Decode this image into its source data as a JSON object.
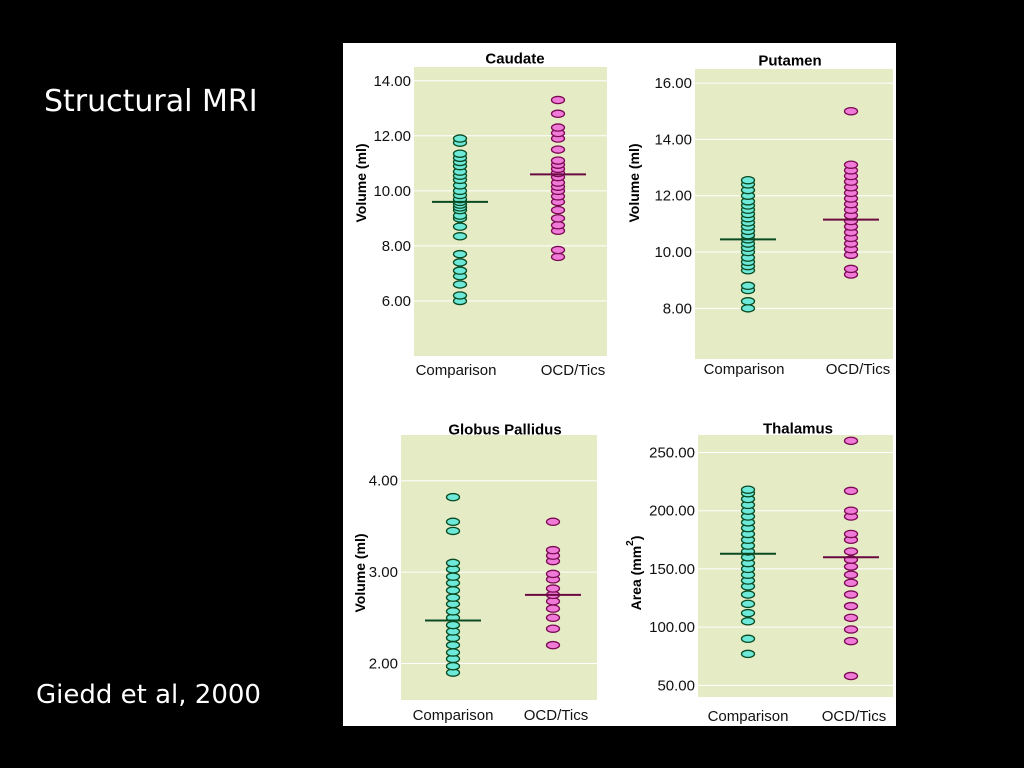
{
  "slide": {
    "title": "Structural MRI",
    "citation": "Giedd et al, 2000"
  },
  "colors": {
    "background": "#000000",
    "panel_bg": "#e5ebc5",
    "comparison_fill": "#6ee8d8",
    "comparison_stroke": "#0a4a22",
    "comparison_mean": "#0a4a22",
    "ocd_fill": "#f07ad8",
    "ocd_stroke": "#7a0a52",
    "ocd_mean": "#6a0a40"
  },
  "chart_data": [
    {
      "type": "scatter",
      "title": "Caudate",
      "ylabel": "Volume (ml)",
      "ylabel_sup": "",
      "ylabel_tail": "",
      "yticks": [
        "6.00",
        "8.00",
        "10.00",
        "12.00",
        "14.00"
      ],
      "ylim": [
        4.0,
        14.5
      ],
      "categories": [
        "Comparison",
        "OCD/Tics"
      ],
      "series": [
        {
          "name": "Comparison",
          "mean": 9.6,
          "values": [
            6.0,
            6.2,
            6.6,
            6.9,
            7.1,
            7.4,
            7.7,
            8.35,
            8.7,
            9.0,
            9.1,
            9.3,
            9.4,
            9.5,
            9.6,
            9.7,
            9.85,
            10.0,
            10.2,
            10.4,
            10.55,
            10.7,
            10.9,
            11.05,
            11.2,
            11.35,
            11.75,
            11.9
          ]
        },
        {
          "name": "OCD/Tics",
          "mean": 10.6,
          "values": [
            7.6,
            7.85,
            8.55,
            8.75,
            9.0,
            9.3,
            9.6,
            9.8,
            10.0,
            10.15,
            10.3,
            10.5,
            10.65,
            10.8,
            10.95,
            11.1,
            11.5,
            11.9,
            12.1,
            12.3,
            12.8,
            13.3
          ]
        }
      ]
    },
    {
      "type": "scatter",
      "title": "Putamen",
      "ylabel": "Volume (ml)",
      "ylabel_sup": "",
      "ylabel_tail": "",
      "yticks": [
        "8.00",
        "10.00",
        "12.00",
        "14.00",
        "16.00"
      ],
      "ylim": [
        6.2,
        16.5
      ],
      "categories": [
        "Comparison",
        "OCD/Tics"
      ],
      "series": [
        {
          "name": "Comparison",
          "mean": 10.45,
          "values": [
            8.0,
            8.25,
            8.65,
            8.8,
            9.35,
            9.5,
            9.65,
            9.8,
            10.0,
            10.15,
            10.3,
            10.45,
            10.6,
            10.75,
            10.9,
            11.05,
            11.2,
            11.35,
            11.5,
            11.65,
            11.8,
            12.0,
            12.2,
            12.4,
            12.55
          ]
        },
        {
          "name": "OCD/Tics",
          "mean": 11.15,
          "values": [
            9.2,
            9.4,
            9.9,
            10.1,
            10.3,
            10.5,
            10.7,
            10.9,
            11.1,
            11.3,
            11.5,
            11.7,
            11.9,
            12.1,
            12.3,
            12.5,
            12.7,
            12.9,
            13.1,
            15.0
          ]
        }
      ]
    },
    {
      "type": "scatter",
      "title": "Globus Pallidus",
      "ylabel": "Volume (ml)",
      "ylabel_sup": "",
      "ylabel_tail": "",
      "yticks": [
        "2.00",
        "3.00",
        "4.00"
      ],
      "ylim": [
        1.6,
        4.5
      ],
      "categories": [
        "Comparison",
        "OCD/Tics"
      ],
      "series": [
        {
          "name": "Comparison",
          "mean": 2.47,
          "values": [
            1.9,
            1.97,
            2.05,
            2.12,
            2.2,
            2.28,
            2.35,
            2.42,
            2.5,
            2.57,
            2.65,
            2.72,
            2.8,
            2.88,
            2.95,
            3.03,
            3.1,
            3.45,
            3.55,
            3.82
          ]
        },
        {
          "name": "OCD/Tics",
          "mean": 2.75,
          "values": [
            2.2,
            2.38,
            2.5,
            2.6,
            2.68,
            2.75,
            2.82,
            2.92,
            2.98,
            3.12,
            3.18,
            3.24,
            3.55
          ]
        }
      ]
    },
    {
      "type": "scatter",
      "title": "Thalamus",
      "ylabel": "Area (mm",
      "ylabel_sup": "2",
      "ylabel_tail": ")",
      "yticks": [
        "50.00",
        "100.00",
        "150.00",
        "200.00",
        "250.00"
      ],
      "ylim": [
        40,
        265
      ],
      "categories": [
        "Comparison",
        "OCD/Tics"
      ],
      "series": [
        {
          "name": "Comparison",
          "mean": 163,
          "values": [
            77,
            90,
            105,
            112,
            120,
            128,
            135,
            140,
            145,
            150,
            155,
            160,
            165,
            170,
            175,
            180,
            185,
            190,
            195,
            200,
            205,
            210,
            215,
            218
          ]
        },
        {
          "name": "OCD/Tics",
          "mean": 160,
          "values": [
            58,
            88,
            98,
            108,
            118,
            128,
            138,
            145,
            152,
            158,
            165,
            175,
            180,
            195,
            200,
            217,
            260
          ]
        }
      ]
    }
  ]
}
